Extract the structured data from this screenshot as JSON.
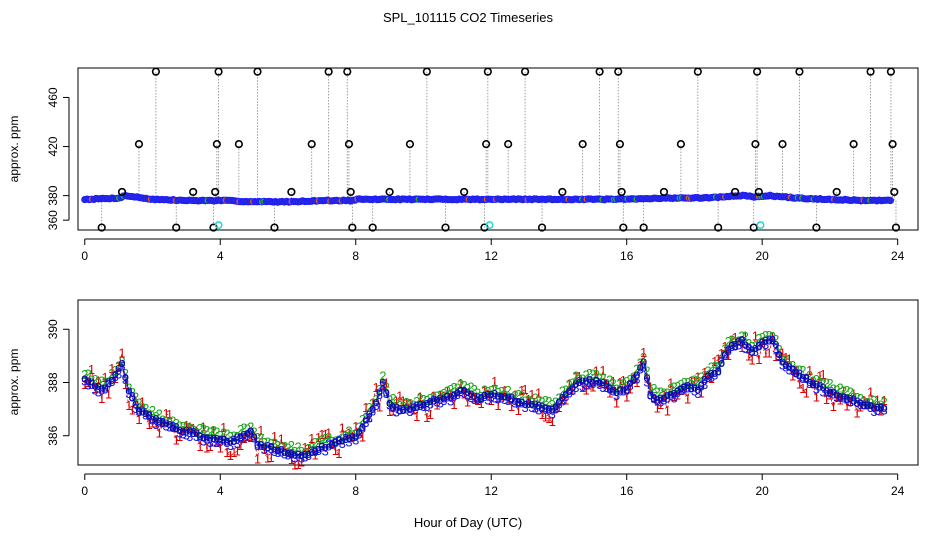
{
  "chart_data": [
    {
      "type": "scatter",
      "title": "SPL_101115  CO2 Timeseries",
      "xlabel": "",
      "ylabel": "approx. ppm",
      "xlim": [
        -0.2,
        24.6
      ],
      "ylim": [
        352,
        484
      ],
      "xticks": [
        0,
        4,
        8,
        12,
        16,
        20,
        24
      ],
      "yticks": [
        360,
        380,
        420,
        460
      ],
      "ytick_labels": [
        "360",
        "380",
        "420",
        "460"
      ],
      "grid": false,
      "baseline": {
        "name": "baseline",
        "x": [
          0,
          1,
          1.2,
          2,
          3,
          4,
          4.05,
          5,
          6,
          7,
          8,
          8.05,
          9,
          10,
          11,
          12,
          13,
          14,
          15,
          16,
          17,
          18,
          19,
          19.2,
          19.4,
          19.8,
          20.2,
          21,
          22,
          23,
          23.8
        ],
        "y": [
          377,
          378,
          380,
          377,
          376,
          376,
          376,
          375,
          375,
          376,
          376,
          377,
          377,
          377,
          377,
          377,
          377,
          377,
          377,
          377,
          378,
          378,
          379,
          380,
          380,
          379,
          380,
          378,
          377,
          376,
          376
        ]
      },
      "outlier_spikes": [
        {
          "x": 0.5,
          "y": 354
        },
        {
          "x": 1.1,
          "y": 383
        },
        {
          "x": 1.6,
          "y": 422
        },
        {
          "x": 2.1,
          "y": 481
        },
        {
          "x": 2.7,
          "y": 354
        },
        {
          "x": 3.2,
          "y": 383
        },
        {
          "x": 3.8,
          "y": 354
        },
        {
          "x": 3.85,
          "y": 383
        },
        {
          "x": 3.9,
          "y": 422
        },
        {
          "x": 3.95,
          "y": 481
        },
        {
          "x": 4.55,
          "y": 422
        },
        {
          "x": 5.1,
          "y": 481
        },
        {
          "x": 5.6,
          "y": 354
        },
        {
          "x": 6.1,
          "y": 383
        },
        {
          "x": 6.7,
          "y": 422
        },
        {
          "x": 7.2,
          "y": 481
        },
        {
          "x": 7.75,
          "y": 481
        },
        {
          "x": 7.8,
          "y": 422
        },
        {
          "x": 7.85,
          "y": 383
        },
        {
          "x": 7.9,
          "y": 354
        },
        {
          "x": 8.5,
          "y": 354
        },
        {
          "x": 9.0,
          "y": 383
        },
        {
          "x": 9.6,
          "y": 422
        },
        {
          "x": 10.1,
          "y": 481
        },
        {
          "x": 10.65,
          "y": 354
        },
        {
          "x": 11.2,
          "y": 383
        },
        {
          "x": 11.8,
          "y": 354
        },
        {
          "x": 11.85,
          "y": 422
        },
        {
          "x": 11.9,
          "y": 481
        },
        {
          "x": 12.5,
          "y": 422
        },
        {
          "x": 13.0,
          "y": 481
        },
        {
          "x": 13.5,
          "y": 354
        },
        {
          "x": 14.1,
          "y": 383
        },
        {
          "x": 14.7,
          "y": 422
        },
        {
          "x": 15.2,
          "y": 481
        },
        {
          "x": 15.75,
          "y": 481
        },
        {
          "x": 15.8,
          "y": 422
        },
        {
          "x": 15.85,
          "y": 383
        },
        {
          "x": 15.9,
          "y": 354
        },
        {
          "x": 16.5,
          "y": 354
        },
        {
          "x": 17.1,
          "y": 383
        },
        {
          "x": 17.6,
          "y": 422
        },
        {
          "x": 18.1,
          "y": 481
        },
        {
          "x": 18.7,
          "y": 354
        },
        {
          "x": 19.2,
          "y": 383
        },
        {
          "x": 19.75,
          "y": 354
        },
        {
          "x": 19.8,
          "y": 422
        },
        {
          "x": 19.85,
          "y": 481
        },
        {
          "x": 19.9,
          "y": 383
        },
        {
          "x": 20.6,
          "y": 422
        },
        {
          "x": 21.1,
          "y": 481
        },
        {
          "x": 21.6,
          "y": 354
        },
        {
          "x": 22.2,
          "y": 383
        },
        {
          "x": 22.7,
          "y": 422
        },
        {
          "x": 23.2,
          "y": 481
        },
        {
          "x": 23.8,
          "y": 481
        },
        {
          "x": 23.85,
          "y": 422
        },
        {
          "x": 23.9,
          "y": 383
        },
        {
          "x": 23.95,
          "y": 354
        }
      ],
      "cyan_points": [
        {
          "x": 3.95,
          "y": 356
        },
        {
          "x": 11.95,
          "y": 356
        },
        {
          "x": 19.95,
          "y": 356
        }
      ],
      "colors": {
        "baseline": "#2b2bd9",
        "baseline_edge": "#1a1aff",
        "outlier": "#000000",
        "cyan": "#22d3d3",
        "accent": "#e06020",
        "green": "#20c020"
      }
    },
    {
      "type": "line",
      "title": "",
      "xlabel": "Hour of Day (UTC)",
      "ylabel": "approx. ppm",
      "xlim": [
        -0.2,
        24.6
      ],
      "ylim": [
        384.9,
        391.1
      ],
      "xticks": [
        0,
        4,
        8,
        12,
        16,
        20,
        24
      ],
      "yticks": [
        386,
        388,
        390
      ],
      "grid": false,
      "base_curve": {
        "x": [
          0,
          0.3,
          0.6,
          0.9,
          1.1,
          1.3,
          1.6,
          2.0,
          2.5,
          3.0,
          3.5,
          4.0,
          4.3,
          4.6,
          4.9,
          5.1,
          5.5,
          6.0,
          6.5,
          7.0,
          7.5,
          8.0,
          8.3,
          8.6,
          8.8,
          9.0,
          9.3,
          9.7,
          10.2,
          10.8,
          11.2,
          11.6,
          12.0,
          12.4,
          12.8,
          13.3,
          13.8,
          14.2,
          14.5,
          14.9,
          15.3,
          15.7,
          16.0,
          16.3,
          16.5,
          16.7,
          16.9,
          17.2,
          17.5,
          17.8,
          18.1,
          18.4,
          18.7,
          19.0,
          19.4,
          19.7,
          20.0,
          20.3,
          20.6,
          20.9,
          21.2,
          21.5,
          21.8,
          22.2,
          22.6,
          23.0,
          23.3,
          23.6,
          23.7
        ],
        "y": [
          388.2,
          387.9,
          387.8,
          388.3,
          388.7,
          387.7,
          387.0,
          386.7,
          386.4,
          386.2,
          386.0,
          385.9,
          385.8,
          386.0,
          386.2,
          385.7,
          385.6,
          385.4,
          385.3,
          385.6,
          385.8,
          386.0,
          386.6,
          387.3,
          388.0,
          387.2,
          387.0,
          387.1,
          387.3,
          387.5,
          387.8,
          387.4,
          387.6,
          387.5,
          387.3,
          387.2,
          387.0,
          387.6,
          388.0,
          388.1,
          388.0,
          387.7,
          387.8,
          388.3,
          388.8,
          387.6,
          387.4,
          387.5,
          387.7,
          387.9,
          387.8,
          388.3,
          388.5,
          389.3,
          389.6,
          389.2,
          389.5,
          389.7,
          388.8,
          388.5,
          388.2,
          388.0,
          387.8,
          387.6,
          387.4,
          387.2,
          387.1,
          387.1,
          387.4
        ]
      },
      "series": [
        {
          "name": "1",
          "marker": "1",
          "color": "#dd0000",
          "offset": -0.05,
          "noise": 0.55
        },
        {
          "name": "2",
          "marker": "2",
          "color": "#1ea81e",
          "offset": 0.13,
          "noise": 0.12
        },
        {
          "name": "3",
          "marker": "3",
          "color": "#1a1ae6",
          "offset": -0.12,
          "noise": 0.12
        },
        {
          "name": "o",
          "marker": "o",
          "color": "#0a0aa8",
          "offset": -0.02,
          "noise": 0.06
        }
      ],
      "colors": {
        "dash": "#2020d0"
      }
    }
  ]
}
